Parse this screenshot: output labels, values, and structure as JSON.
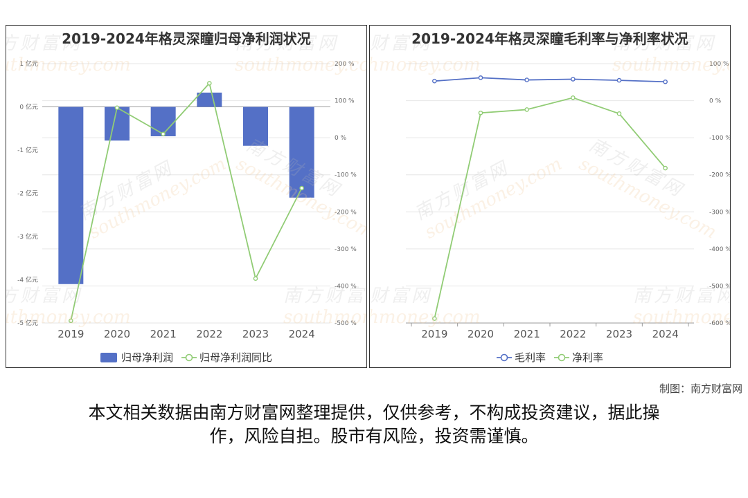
{
  "charts": [
    {
      "title": "2019-2024年格灵深瞳归母净利润状况",
      "chart_data": {
        "type": "bar",
        "categories": [
          "2019",
          "2020",
          "2021",
          "2022",
          "2023",
          "2024"
        ],
        "series": [
          {
            "name": "归母净利润",
            "kind": "bar",
            "axis": "left",
            "color": "#5470c6",
            "values": [
              -4.1,
              -0.78,
              -0.68,
              0.33,
              -0.9,
              -2.1
            ]
          },
          {
            "name": "归母净利润同比",
            "kind": "line",
            "axis": "right",
            "color": "#91cc75",
            "values": [
              -494,
              81,
              10,
              147,
              -380,
              -136
            ]
          }
        ],
        "left_axis": {
          "ticks": [
            1,
            0,
            -1,
            -2,
            -3,
            -4,
            -5
          ],
          "tick_labels": [
            "1 亿元",
            "0 亿元",
            "-1 亿元",
            "-2 亿元",
            "-3 亿元",
            "-4 亿元",
            "-5 亿元"
          ],
          "range": [
            -5,
            1
          ]
        },
        "right_axis": {
          "ticks": [
            200,
            100,
            0,
            -100,
            -200,
            -300,
            -400,
            -500
          ],
          "tick_labels": [
            "200 %",
            "100 %",
            "0 %",
            "-100 %",
            "-200 %",
            "-300 %",
            "-400 %",
            "-500 %"
          ],
          "range": [
            -500,
            200
          ]
        },
        "grid": true,
        "legend": "bottom"
      }
    },
    {
      "title": "2019-2024年格灵深瞳毛利率与净利率状况",
      "chart_data": {
        "type": "line",
        "categories": [
          "2019",
          "2020",
          "2021",
          "2022",
          "2023",
          "2024"
        ],
        "series": [
          {
            "name": "毛利率",
            "kind": "line",
            "axis": "right",
            "color": "#5470c6",
            "values": [
              53,
              62,
              56,
              58,
              55,
              51
            ]
          },
          {
            "name": "净利率",
            "kind": "line",
            "axis": "right",
            "color": "#91cc75",
            "values": [
              -588,
              -33,
              -24,
              8,
              -35,
              -182
            ]
          }
        ],
        "right_axis": {
          "ticks": [
            100,
            0,
            -100,
            -200,
            -300,
            -400,
            -500,
            -600
          ],
          "tick_labels": [
            "100 %",
            "0 %",
            "-100 %",
            "-200 %",
            "-300 %",
            "-400 %",
            "-500 %",
            "-600 %"
          ],
          "range": [
            -600,
            100
          ]
        },
        "grid": true,
        "legend": "bottom"
      }
    }
  ],
  "watermark": {
    "cn": "南方财富网",
    "en": "southmoney.com"
  },
  "credit": "制图：南方财富网",
  "disclaimer": {
    "line1": "本文相关数据由南方财富网整理提供，仅供参考，不构成投资建议，据此操",
    "line2": "作，风险自担。股市有风险，投资需谨慎。"
  },
  "colors": {
    "bar": "#5470c6",
    "green_line": "#91cc75",
    "blue_line": "#5470c6",
    "grid": "#e6e6e6",
    "axis_text": "#666666"
  }
}
